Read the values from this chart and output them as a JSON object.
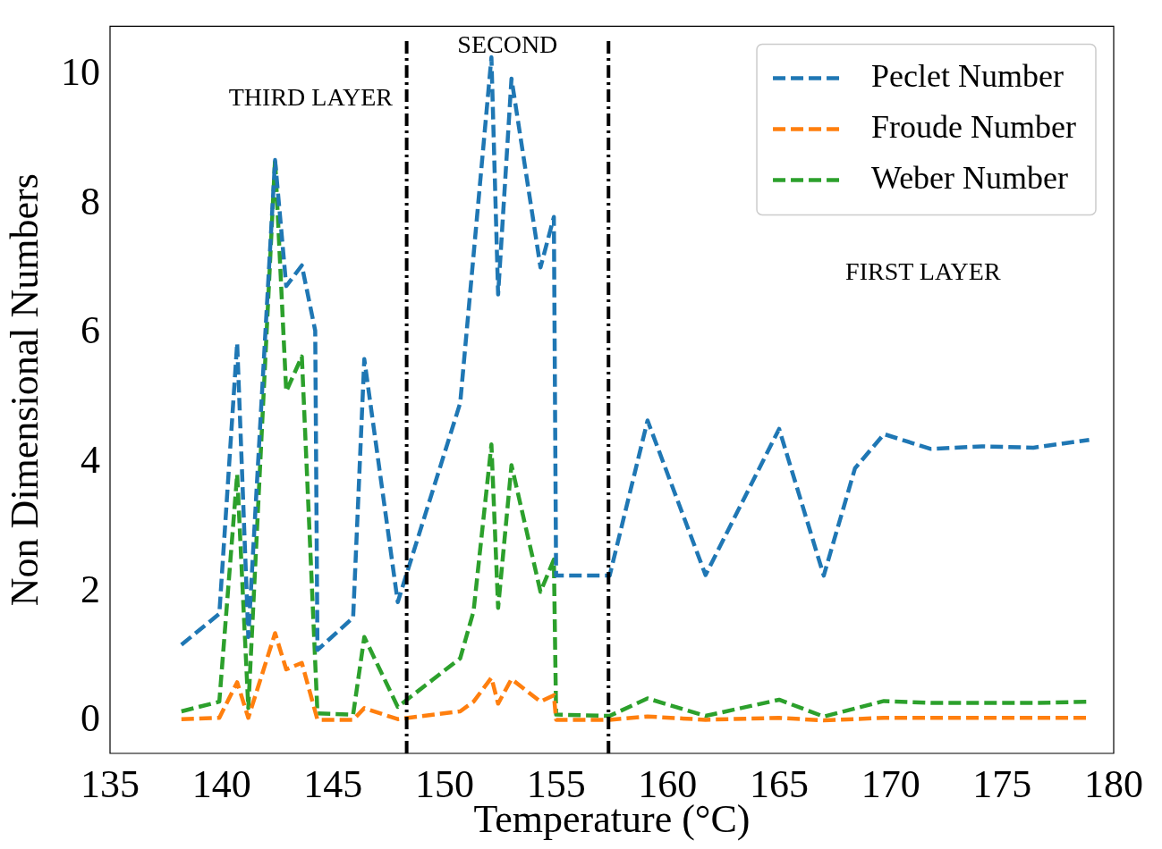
{
  "chart_data": {
    "type": "line",
    "xlabel": "Temperature (°C)",
    "ylabel": "Non Dimensional Numbers",
    "xlim": [
      135,
      180
    ],
    "xticks": [
      135,
      140,
      145,
      150,
      155,
      160,
      165,
      170,
      175,
      180
    ],
    "ylim": [
      -0.5,
      10.75
    ],
    "yticks": [
      0,
      2,
      4,
      6,
      8,
      10
    ],
    "grid": false,
    "legend": "top right",
    "marker": "none",
    "line_style": "dashed",
    "series": [
      {
        "name": "Peclet Number",
        "color": "#1f77b4",
        "x": [
          138.2,
          139.9,
          140.7,
          141.2,
          142.4,
          142.9,
          143.6,
          144.2,
          144.3,
          145.9,
          146.4,
          147.9,
          150.7,
          152.1,
          152.4,
          153.0,
          154.3,
          154.9,
          155.0,
          157.4,
          159.1,
          161.7,
          165.0,
          167.0,
          168.4,
          169.7,
          171.8,
          174.1,
          176.4,
          178.9
        ],
        "values": [
          1.18,
          1.66,
          5.85,
          1.3,
          8.68,
          6.73,
          7.05,
          6.04,
          1.1,
          1.6,
          5.6,
          1.84,
          4.92,
          10.27,
          6.6,
          9.94,
          7.02,
          7.8,
          2.25,
          2.25,
          4.65,
          2.26,
          4.52,
          2.25,
          3.91,
          4.44,
          4.21,
          4.25,
          4.23,
          4.35
        ]
      },
      {
        "name": "Froude Number",
        "color": "#ff7f0e",
        "x": [
          138.2,
          139.9,
          140.7,
          141.2,
          142.4,
          142.9,
          143.6,
          144.3,
          145.9,
          146.4,
          147.9,
          150.7,
          151.3,
          152.1,
          152.4,
          153.0,
          154.3,
          154.9,
          155.0,
          157.4,
          159.1,
          161.7,
          165.0,
          167.0,
          169.7,
          171.8,
          174.1,
          176.4,
          178.9
        ],
        "values": [
          0.03,
          0.05,
          0.6,
          0.05,
          1.36,
          0.8,
          0.9,
          0.02,
          0.02,
          0.2,
          0.03,
          0.15,
          0.3,
          0.67,
          0.27,
          0.65,
          0.3,
          0.4,
          0.02,
          0.02,
          0.07,
          0.02,
          0.05,
          0.01,
          0.05,
          0.05,
          0.05,
          0.05,
          0.05
        ]
      },
      {
        "name": "Weber Number",
        "color": "#2ca02c",
        "x": [
          138.2,
          139.9,
          140.7,
          141.2,
          142.4,
          142.9,
          143.6,
          144.3,
          145.9,
          146.4,
          147.9,
          150.7,
          151.3,
          152.1,
          152.4,
          153.0,
          154.3,
          154.9,
          155.0,
          157.4,
          159.1,
          161.7,
          165.0,
          167.0,
          169.7,
          171.8,
          174.1,
          176.4,
          178.9
        ],
        "values": [
          0.15,
          0.3,
          3.82,
          0.2,
          8.7,
          5.1,
          5.64,
          0.12,
          0.1,
          1.3,
          0.22,
          0.97,
          1.7,
          4.28,
          1.75,
          3.96,
          2.0,
          2.5,
          0.1,
          0.08,
          0.35,
          0.08,
          0.33,
          0.07,
          0.31,
          0.28,
          0.28,
          0.28,
          0.3
        ]
      }
    ],
    "ref_lines": [
      {
        "axis": "x",
        "value": 148.3,
        "color": "#000000",
        "line_style": "dashed"
      },
      {
        "axis": "x",
        "value": 157.35,
        "color": "#000000",
        "line_style": "dashed"
      }
    ],
    "annotations": [
      "THIRD LAYER",
      "SECOND",
      "FIRST LAYER"
    ]
  }
}
